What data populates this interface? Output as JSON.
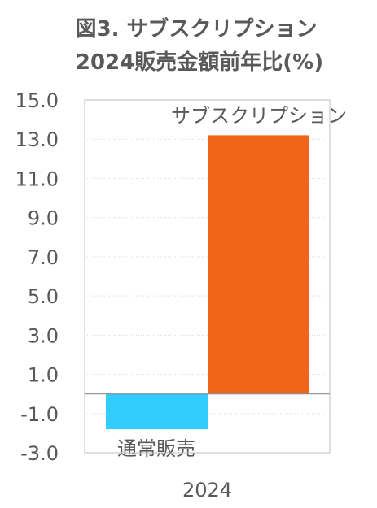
{
  "chart_data": {
    "type": "bar",
    "title_lines": [
      "図3. サブスクリプション",
      "2024販売金額前年比(%)"
    ],
    "categories": [
      "2024"
    ],
    "series": [
      {
        "name": "通常販売",
        "values": [
          -1.8
        ],
        "color": "#33ccff"
      },
      {
        "name": "サブスクリプション",
        "values": [
          13.2
        ],
        "color": "#f26419"
      }
    ],
    "y_ticks": [
      "15.0",
      "13.0",
      "11.0",
      "9.0",
      "7.0",
      "5.0",
      "3.0",
      "1.0",
      "-1.0",
      "-3.0"
    ],
    "ylim": [
      -3,
      15
    ],
    "y_step": 2,
    "grid": true,
    "legend": "none"
  }
}
